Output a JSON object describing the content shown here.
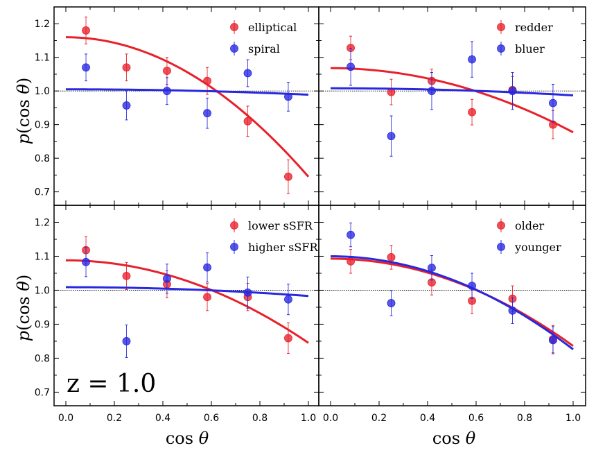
{
  "figure": {
    "x_axis_label": "cos θ",
    "y_axis_label": "p(cos θ)",
    "annotation": "z = 1.0",
    "reference_line": 1.0
  },
  "chart_data": [
    {
      "type": "scatter",
      "panel": "top-left",
      "xlim": [
        0,
        1
      ],
      "ylim": [
        0.66,
        1.25
      ],
      "x_ticks": [
        "0.0",
        "0.2",
        "0.4",
        "0.6",
        "0.8",
        "1.0"
      ],
      "y_ticks": [
        "0.7",
        "0.8",
        "0.9",
        "1.0",
        "1.1",
        "1.2"
      ],
      "legend_position": "top-right",
      "series": [
        {
          "name": "elliptical",
          "color": "#e8202a",
          "x": [
            0.083,
            0.25,
            0.417,
            0.583,
            0.75,
            0.917
          ],
          "y": [
            1.18,
            1.07,
            1.06,
            1.03,
            0.91,
            0.745
          ],
          "err": [
            0.04,
            0.04,
            0.04,
            0.04,
            0.045,
            0.05
          ],
          "fit": [
            1.16,
            0.745
          ]
        },
        {
          "name": "spiral",
          "color": "#2828e0",
          "x": [
            0.083,
            0.25,
            0.417,
            0.583,
            0.75,
            0.917
          ],
          "y": [
            1.07,
            0.957,
            1.0,
            0.934,
            1.053,
            0.983
          ],
          "err": [
            0.04,
            0.043,
            0.04,
            0.045,
            0.04,
            0.043
          ],
          "fit": [
            1.005,
            0.989
          ]
        }
      ]
    },
    {
      "type": "scatter",
      "panel": "top-right",
      "xlim": [
        0,
        1
      ],
      "ylim": [
        0.66,
        1.25
      ],
      "x_ticks": [
        "0.0",
        "0.2",
        "0.4",
        "0.6",
        "0.8",
        "1.0"
      ],
      "y_ticks": [],
      "legend_position": "top-right",
      "series": [
        {
          "name": "redder",
          "color": "#e8202a",
          "x": [
            0.083,
            0.25,
            0.417,
            0.583,
            0.75,
            0.917
          ],
          "y": [
            1.128,
            0.997,
            1.03,
            0.937,
            1.003,
            0.9
          ],
          "err": [
            0.035,
            0.038,
            0.035,
            0.038,
            0.04,
            0.042
          ],
          "fit": [
            1.068,
            0.877
          ]
        },
        {
          "name": "bluer",
          "color": "#2828e0",
          "x": [
            0.083,
            0.25,
            0.417,
            0.583,
            0.75,
            0.917
          ],
          "y": [
            1.072,
            0.866,
            1.0,
            1.094,
            1.0,
            0.964
          ],
          "err": [
            0.055,
            0.06,
            0.055,
            0.053,
            0.055,
            0.056
          ],
          "fit": [
            1.008,
            0.987
          ]
        }
      ]
    },
    {
      "type": "scatter",
      "panel": "bottom-left",
      "xlim": [
        0,
        1
      ],
      "ylim": [
        0.66,
        1.25
      ],
      "x_ticks": [
        "0.0",
        "0.2",
        "0.4",
        "0.6",
        "0.8",
        "1.0"
      ],
      "y_ticks": [
        "0.7",
        "0.8",
        "0.9",
        "1.0",
        "1.1",
        "1.2"
      ],
      "legend_position": "top-right",
      "series": [
        {
          "name": "lower sSFR",
          "color": "#e8202a",
          "x": [
            0.083,
            0.25,
            0.417,
            0.583,
            0.75,
            0.917
          ],
          "y": [
            1.118,
            1.042,
            1.018,
            0.98,
            0.98,
            0.859
          ],
          "err": [
            0.04,
            0.04,
            0.04,
            0.04,
            0.04,
            0.045
          ],
          "fit": [
            1.088,
            0.845
          ]
        },
        {
          "name": "higher sSFR",
          "color": "#2828e0",
          "x": [
            0.083,
            0.25,
            0.417,
            0.583,
            0.75,
            0.917
          ],
          "y": [
            1.083,
            0.85,
            1.034,
            1.067,
            0.993,
            0.973
          ],
          "err": [
            0.043,
            0.048,
            0.043,
            0.043,
            0.046,
            0.045
          ],
          "fit": [
            1.009,
            0.983
          ]
        }
      ]
    },
    {
      "type": "scatter",
      "panel": "bottom-right",
      "xlim": [
        0,
        1
      ],
      "ylim": [
        0.66,
        1.25
      ],
      "x_ticks": [
        "0.0",
        "0.2",
        "0.4",
        "0.6",
        "0.8",
        "1.0"
      ],
      "y_ticks": [],
      "legend_position": "top-right",
      "series": [
        {
          "name": "older",
          "color": "#e8202a",
          "x": [
            0.083,
            0.25,
            0.417,
            0.583,
            0.75,
            0.917
          ],
          "y": [
            1.085,
            1.097,
            1.023,
            0.969,
            0.975,
            0.856
          ],
          "err": [
            0.035,
            0.035,
            0.037,
            0.038,
            0.038,
            0.04
          ],
          "fit": [
            1.093,
            0.836
          ]
        },
        {
          "name": "younger",
          "color": "#2828e0",
          "x": [
            0.083,
            0.25,
            0.417,
            0.583,
            0.75,
            0.917
          ],
          "y": [
            1.163,
            0.962,
            1.066,
            1.013,
            0.94,
            0.853
          ],
          "err": [
            0.035,
            0.037,
            0.036,
            0.037,
            0.038,
            0.04
          ],
          "fit": [
            1.1,
            0.826
          ]
        }
      ]
    }
  ]
}
